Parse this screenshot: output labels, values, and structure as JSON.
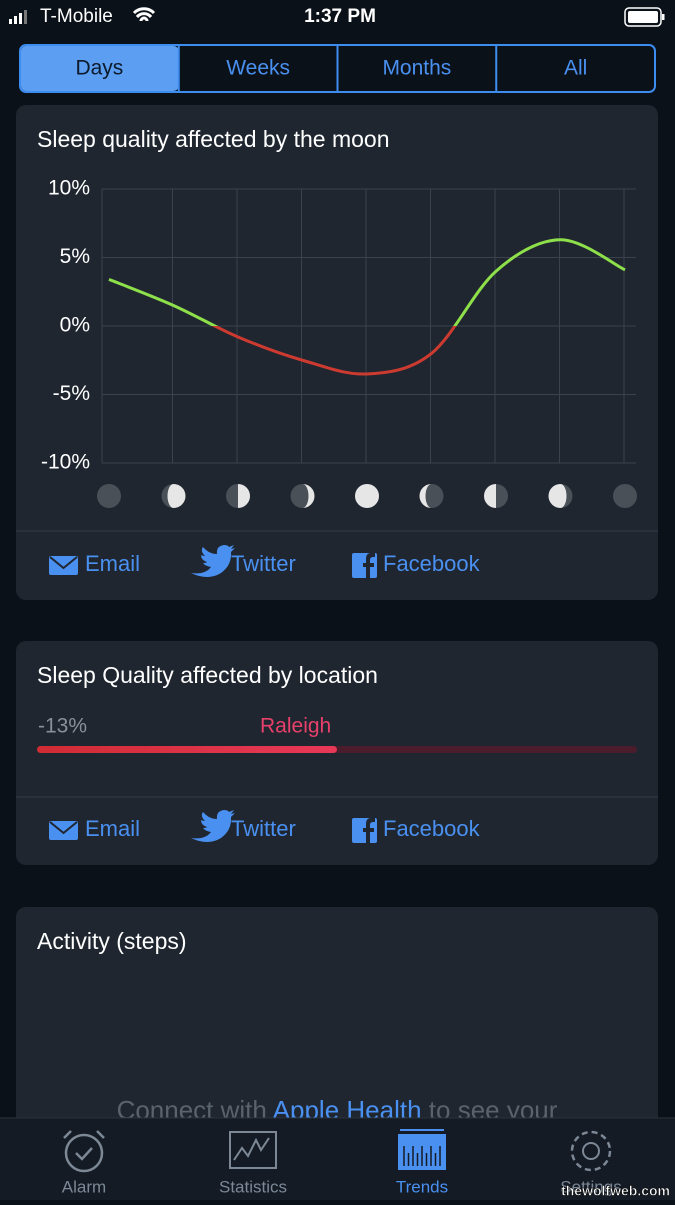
{
  "status_bar": {
    "carrier": "T-Mobile",
    "time": "1:37 PM"
  },
  "segments": {
    "items": [
      "Days",
      "Weeks",
      "Months",
      "All"
    ],
    "selected": 0
  },
  "chart_data": [
    {
      "type": "line",
      "title": "Sleep quality affected by the moon",
      "categories": [
        null,
        null,
        null,
        null,
        null,
        null,
        null,
        null,
        null
      ],
      "series": [
        {
          "color": "#8ee04a",
          "negative_color": "#cc3a30",
          "values": [
            3.4,
            1.5,
            -0.8,
            -2.5,
            -3.5,
            -2.0,
            4.0,
            6.3,
            4.1
          ]
        }
      ],
      "ylim": [
        -10,
        10
      ],
      "yticks": [
        {
          "value": 10,
          "label": "10%"
        },
        {
          "value": 5,
          "label": "5%"
        },
        {
          "value": 0,
          "label": "0%"
        },
        {
          "value": -5,
          "label": "-5%"
        },
        {
          "value": -10,
          "label": "-10%"
        }
      ],
      "grid": true
    },
    {
      "type": "bar",
      "title": "Sleep Quality affected by location",
      "categories": [
        "Raleigh"
      ],
      "values": [
        -13
      ],
      "value_labels": [
        "-13%"
      ],
      "xlim": [
        0,
        -26
      ],
      "color": "#e0344a"
    }
  ],
  "moon_share": [
    "Email",
    "Twitter",
    "Facebook"
  ],
  "location_share": [
    "Email",
    "Twitter",
    "Facebook"
  ],
  "activity": {
    "title": "Activity (steps)",
    "message": [
      "Connect with",
      "Apple Health",
      "to see your"
    ]
  },
  "tab_bar": {
    "items": [
      "Alarm",
      "Statistics",
      "Trends",
      "Settings"
    ],
    "selected": 2
  },
  "watermark": "thewolfweb.com"
}
